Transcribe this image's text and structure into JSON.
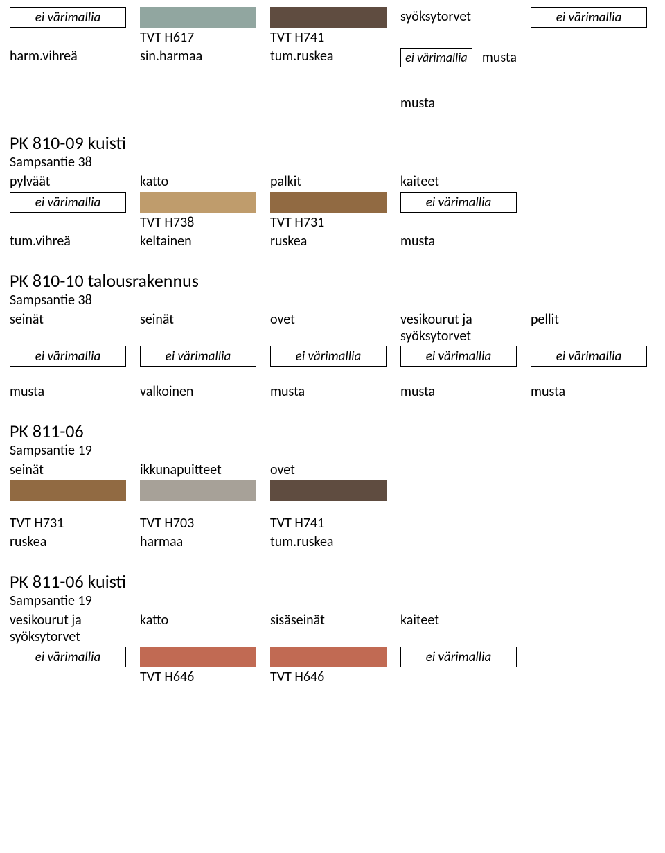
{
  "placeholder": "ei värimallia",
  "section1": {
    "swatches": [
      {
        "type": "placeholder"
      },
      {
        "type": "color",
        "color": "#91a6a0"
      },
      {
        "type": "color",
        "color": "#5f4c40"
      },
      {
        "type": "rightlabel",
        "text": "syöksytorvet"
      },
      {
        "type": "placeholder"
      }
    ],
    "codes": [
      "",
      "TVT H617",
      "TVT H741",
      "",
      ""
    ],
    "names_row": {
      "cells": [
        "harm.vihreä",
        "sin.harmaa",
        "tum.ruskea"
      ],
      "right_text": "musta",
      "right_swatch": "placeholder"
    },
    "extra_right": "musta"
  },
  "section2": {
    "title": "PK 810-09 kuisti",
    "subtitle": "Sampsantie 38",
    "headers": [
      "pylväät",
      "katto",
      "palkit",
      "kaiteet"
    ],
    "swatches": [
      {
        "type": "placeholder"
      },
      {
        "type": "color",
        "color": "#bf9c6c"
      },
      {
        "type": "color",
        "color": "#916a42"
      },
      {
        "type": "placeholder"
      }
    ],
    "codes": [
      "",
      "TVT H738",
      "TVT H731",
      ""
    ],
    "names": [
      "tum.vihreä",
      "keltainen",
      "ruskea",
      "musta"
    ]
  },
  "section3": {
    "title": "PK 810-10 talousrakennus",
    "subtitle": "Sampsantie 38",
    "headers": [
      "seinät",
      "seinät",
      "ovet",
      "vesikourut ja\nsyöksytorvet",
      "pellit"
    ],
    "swatches": [
      {
        "type": "placeholder"
      },
      {
        "type": "placeholder"
      },
      {
        "type": "placeholder"
      },
      {
        "type": "placeholder"
      },
      {
        "type": "placeholder"
      }
    ],
    "names": [
      "musta",
      "valkoinen",
      "musta",
      "musta",
      "musta"
    ]
  },
  "section4": {
    "title": "PK 811-06",
    "subtitle": "Sampsantie 19",
    "headers": [
      "seinät",
      "ikkunapuitteet",
      "ovet"
    ],
    "swatches": [
      {
        "type": "color",
        "color": "#916a42"
      },
      {
        "type": "color",
        "color": "#a7a198"
      },
      {
        "type": "color",
        "color": "#5f4c40"
      }
    ],
    "codes": [
      "TVT H731",
      "TVT H703",
      "TVT H741"
    ],
    "names": [
      "ruskea",
      "harmaa",
      "tum.ruskea"
    ]
  },
  "section5": {
    "title": "PK 811-06 kuisti",
    "subtitle": "Sampsantie 19",
    "headers": [
      "vesikourut ja\nsyöksytorvet",
      "katto",
      "sisäseinät",
      "kaiteet"
    ],
    "swatches": [
      {
        "type": "placeholder"
      },
      {
        "type": "color",
        "color": "#c16a53"
      },
      {
        "type": "color",
        "color": "#c16a53"
      },
      {
        "type": "placeholder"
      }
    ],
    "codes": [
      "",
      "TVT H646",
      "TVT H646",
      ""
    ]
  }
}
